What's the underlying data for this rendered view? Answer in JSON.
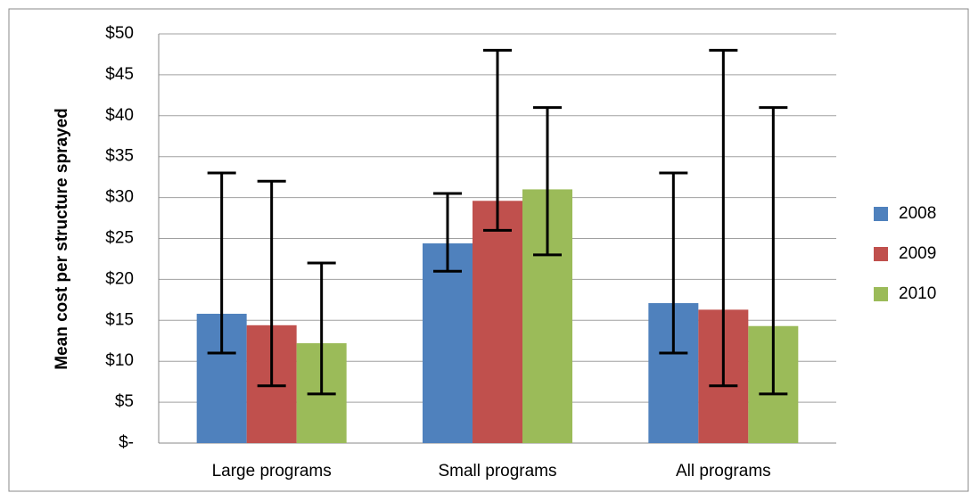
{
  "chart_data": {
    "type": "bar",
    "y_label": "Mean cost per structure sprayed",
    "categories": [
      "Large programs",
      "Small programs",
      "All programs"
    ],
    "series": [
      {
        "name": "2008",
        "color": "#4f81bd",
        "values": [
          15.8,
          24.4,
          17.1
        ],
        "lower": [
          11,
          21,
          11
        ],
        "upper": [
          33,
          30.5,
          33
        ]
      },
      {
        "name": "2009",
        "color": "#c0504d",
        "values": [
          14.4,
          29.6,
          16.3
        ],
        "lower": [
          7,
          26,
          7
        ],
        "upper": [
          32,
          48,
          48
        ]
      },
      {
        "name": "2010",
        "color": "#9bbb59",
        "values": [
          12.2,
          31.0,
          14.3
        ],
        "lower": [
          6,
          23,
          6
        ],
        "upper": [
          22,
          41,
          41
        ]
      }
    ],
    "ylim": [
      0,
      50
    ],
    "yticks": [
      {
        "value": 0,
        "label": "$-"
      },
      {
        "value": 5,
        "label": "$5"
      },
      {
        "value": 10,
        "label": "$10"
      },
      {
        "value": 15,
        "label": "$15"
      },
      {
        "value": 20,
        "label": "$20"
      },
      {
        "value": 25,
        "label": "$25"
      },
      {
        "value": 30,
        "label": "$30"
      },
      {
        "value": 35,
        "label": "$35"
      },
      {
        "value": 40,
        "label": "$40"
      },
      {
        "value": 45,
        "label": "$45"
      },
      {
        "value": 50,
        "label": "$50"
      }
    ],
    "grid": true,
    "legend": "right"
  }
}
